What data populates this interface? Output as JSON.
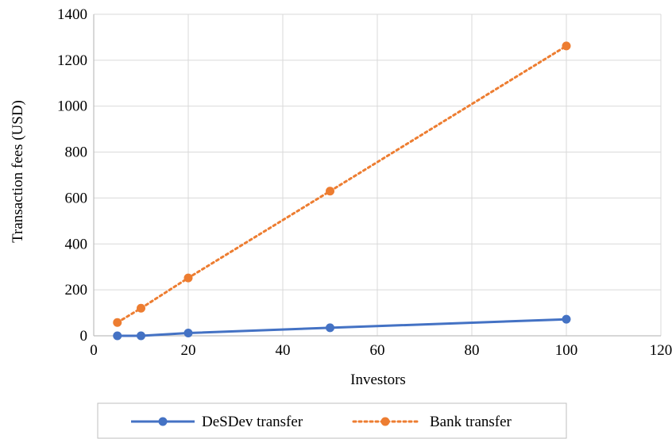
{
  "chart_data": {
    "type": "line",
    "x": [
      5,
      10,
      20,
      50,
      100
    ],
    "series": [
      {
        "name": "DeSDev transfer",
        "values": [
          0,
          0,
          12,
          35,
          72
        ],
        "color": "#4472C4",
        "style": "solid"
      },
      {
        "name": "Bank transfer",
        "values": [
          58,
          120,
          252,
          630,
          1262
        ],
        "color": "#ED7D31",
        "style": "dotted"
      }
    ],
    "xlabel": "Investors",
    "ylabel": "Transaction fees (USD)",
    "xlim": [
      0,
      120
    ],
    "ylim": [
      0,
      1400
    ],
    "xticks": [
      "0",
      "20",
      "40",
      "60",
      "80",
      "100",
      "120"
    ],
    "yticks": [
      "0",
      "200",
      "400",
      "600",
      "800",
      "1000",
      "1200",
      "1400"
    ],
    "grid": true,
    "legend_position": "bottom"
  }
}
